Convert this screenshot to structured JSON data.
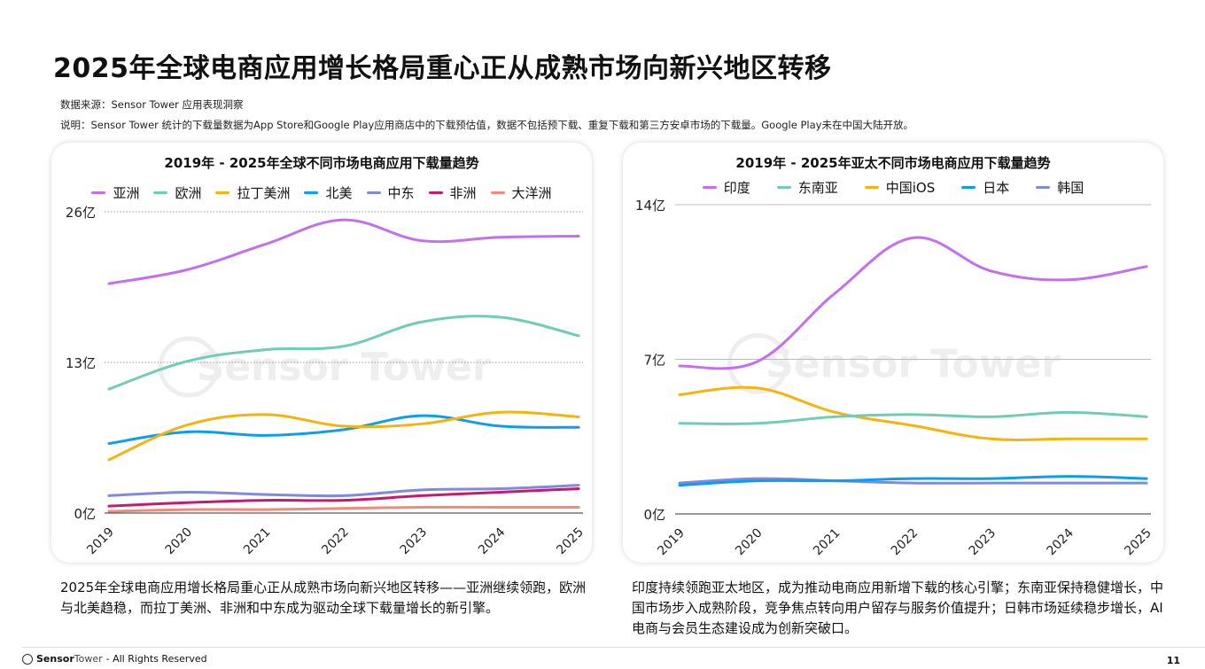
{
  "title": "2025年全球电商应用增长格局重心正从成熟市场向新兴地区转移",
  "source": "数据来源：Sensor Tower 应用表现洞察",
  "note": "说明：Sensor Tower 统计的下载量数据为App Store和Google Play应用商店中的下载预估值，数据不包括预下载、重复下载和第三方安卓市场的下载量。Google Play未在中国大陆开放。",
  "watermark": "Sensor Tower",
  "left_desc": "2025年全球电商应用增长格局重心正从成熟市场向新兴地区转移——亚洲继续领跑，欧洲与北美趋稳，而拉丁美洲、非洲和中东成为驱动全球下载量增长的新引擎。",
  "right_desc": "印度持续领跑亚太地区，成为推动电商应用新增下载的核心引擎；东南亚保持稳健增长，中国市场步入成熟阶段，竞争焦点转向用户留存与服务价值提升；日韩市场延续稳步增长，AI电商与会员生态建设成为创新突破口。",
  "footer": {
    "brand_bold": "Sensor",
    "brand_light": "Tower",
    "rights": "- All Rights Reserved",
    "page": "11"
  },
  "chart_data": [
    {
      "type": "line",
      "title": "2019年 - 2025年全球不同市场电商应用下载量趋势",
      "categories": [
        "2019",
        "2020",
        "2021",
        "2022",
        "2023",
        "2024",
        "2025"
      ],
      "yticks": [
        "0亿",
        "13亿",
        "26亿"
      ],
      "ylim": [
        0,
        26
      ],
      "grid": "dotted",
      "legend": "top",
      "series": [
        {
          "name": "亚洲",
          "color": "#c36ff0",
          "values": [
            19.8,
            21.0,
            23.2,
            25.3,
            23.5,
            23.8,
            23.9
          ]
        },
        {
          "name": "欧洲",
          "color": "#6fcdb6",
          "values": [
            10.7,
            13.1,
            14.1,
            14.4,
            16.5,
            16.9,
            15.3
          ]
        },
        {
          "name": "拉丁美洲",
          "color": "#f7b20e",
          "values": [
            4.6,
            7.6,
            8.5,
            7.5,
            7.7,
            8.7,
            8.3
          ]
        },
        {
          "name": "北美",
          "color": "#0a9ef0",
          "values": [
            6.0,
            7.0,
            6.7,
            7.2,
            8.4,
            7.5,
            7.4
          ]
        },
        {
          "name": "中东",
          "color": "#8089e0",
          "values": [
            1.5,
            1.8,
            1.6,
            1.5,
            2.0,
            2.1,
            2.4
          ]
        },
        {
          "name": "非洲",
          "color": "#c8196b",
          "values": [
            0.6,
            0.9,
            1.1,
            1.1,
            1.5,
            1.8,
            2.1
          ]
        },
        {
          "name": "大洋洲",
          "color": "#f28a7a",
          "values": [
            0.15,
            0.3,
            0.3,
            0.4,
            0.5,
            0.5,
            0.5
          ]
        }
      ]
    },
    {
      "type": "line",
      "title": "2019年 - 2025年亚太不同市场电商应用下载量趋势",
      "categories": [
        "2019",
        "2020",
        "2021",
        "2022",
        "2023",
        "2024",
        "2025"
      ],
      "yticks": [
        "0亿",
        "7亿",
        "14亿"
      ],
      "ylim": [
        0,
        14
      ],
      "grid": "solid",
      "legend": "top",
      "series": [
        {
          "name": "印度",
          "color": "#c36ff0",
          "values": [
            6.7,
            6.9,
            10.0,
            12.5,
            11.0,
            10.6,
            11.2
          ]
        },
        {
          "name": "东南亚",
          "color": "#6fcdb6",
          "values": [
            4.1,
            4.1,
            4.4,
            4.5,
            4.4,
            4.6,
            4.4
          ]
        },
        {
          "name": "中国iOS",
          "color": "#f7b20e",
          "values": [
            5.4,
            5.7,
            4.6,
            4.0,
            3.4,
            3.4,
            3.4
          ]
        },
        {
          "name": "日本",
          "color": "#0a9ef0",
          "values": [
            1.3,
            1.5,
            1.5,
            1.6,
            1.6,
            1.7,
            1.6
          ]
        },
        {
          "name": "韩国",
          "color": "#8089e0",
          "values": [
            1.4,
            1.6,
            1.5,
            1.4,
            1.4,
            1.4,
            1.4
          ]
        }
      ]
    }
  ]
}
